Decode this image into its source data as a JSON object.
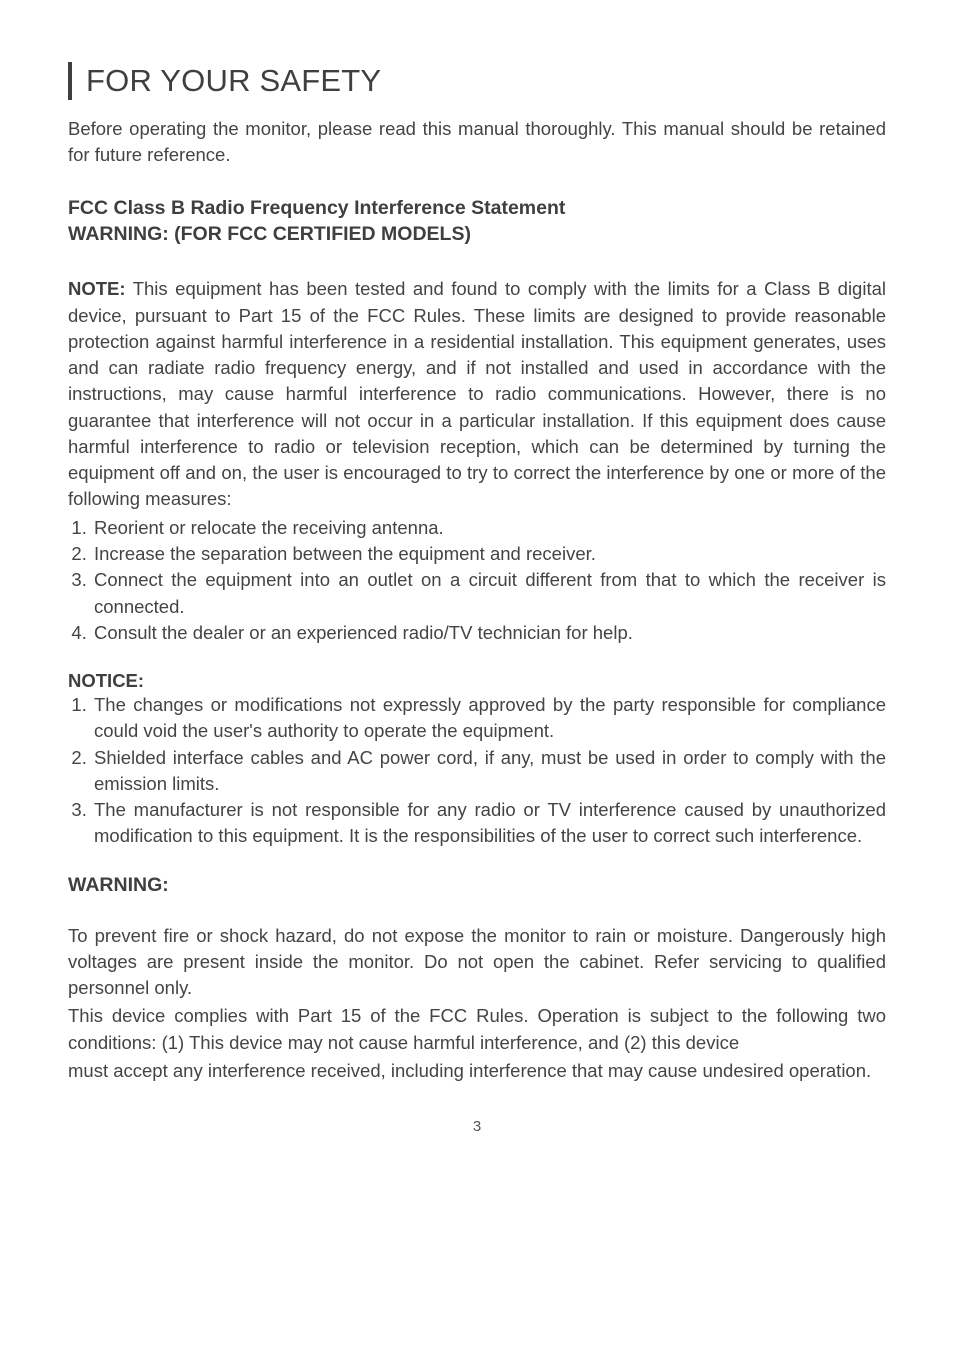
{
  "title": "FOR YOUR SAFETY",
  "intro": "Before operating the monitor, please read this manual thoroughly. This manual should be retained for future reference.",
  "subhead_line1": "FCC Class B Radio Frequency Interference Statement",
  "subhead_line2": "WARNING: (FOR FCC CERTIFIED MODELS)",
  "note_label": "NOTE:",
  "note_body": " This equipment has been tested and found to comply with the limits for a Class B digital device, pursuant to Part 15 of the FCC Rules. These limits are designed to provide reasonable protection against harmful interference in a residential installation. This equipment generates, uses and can radiate radio frequency energy, and if not installed and used in accordance with the instructions, may cause harmful interference to radio communications. However, there is no guarantee that interference will not occur in a particular installation. If this equipment does cause harmful interference to radio or television reception, which can be determined by turning the equipment off and on, the user is encouraged to try to correct the interference by one or more of the following measures:",
  "measures": [
    "Reorient or relocate the receiving antenna.",
    "Increase the separation between the equipment and receiver.",
    "Connect the equipment into an outlet on a circuit different from that to which the receiver is connected.",
    "Consult the dealer or an experienced radio/TV technician for help."
  ],
  "notice_label": "NOTICE:",
  "notices": [
    "The changes or modifications not expressly approved by the party responsible for compliance could void the user's authority to operate the equipment.",
    "Shielded interface cables and AC power cord, if any, must be used in order to comply with the emission limits.",
    "The manufacturer is not responsible for any radio or TV interference caused by unauthorized modification to this equipment. It is the responsibilities of the user to correct such interference."
  ],
  "warning_label": "WARNING:",
  "warning_p1": "To prevent fire or shock hazard, do not expose the monitor to rain or moisture. Dangerously high voltages are present inside the monitor. Do not open the cabinet. Refer servicing to qualified personnel only.",
  "warning_p2": "This device complies with Part 15 of the FCC Rules. Operation is subject to the following two conditions: (1) This device may not cause harmful interference, and (2) this device",
  "warning_p3": "must accept any interference received, including interference that may cause undesired operation.",
  "page_number": "3",
  "colors": {
    "text": "#444444",
    "heading": "#3f3f3f",
    "background": "#ffffff"
  },
  "typography": {
    "title_fontsize": 31,
    "subhead_fontsize": 19.5,
    "body_fontsize": 18.5,
    "pagenum_fontsize": 15
  }
}
